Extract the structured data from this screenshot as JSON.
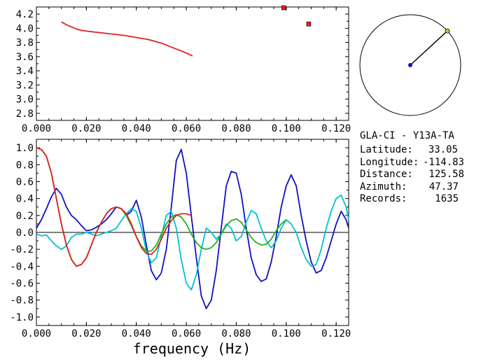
{
  "chart_data": [
    {
      "type": "scatter",
      "xlim": [
        0,
        0.125
      ],
      "ylim": [
        2.7,
        4.3
      ],
      "x_ticks": [
        "0.000",
        "0.020",
        "0.040",
        "0.060",
        "0.080",
        "0.100",
        "0.120"
      ],
      "y_ticks": [
        "2.8",
        "3.0",
        "3.2",
        "3.4",
        "3.6",
        "3.8",
        "4.0",
        "4.2"
      ],
      "grid": false,
      "series": [
        {
          "color": "#e02020",
          "kind": "line",
          "x": [
            0.01,
            0.012,
            0.014,
            0.016,
            0.018,
            0.02,
            0.025,
            0.03,
            0.035,
            0.04,
            0.045,
            0.05,
            0.055,
            0.058,
            0.06,
            0.0625
          ],
          "y": [
            4.09,
            4.05,
            4.02,
            3.99,
            3.97,
            3.96,
            3.94,
            3.92,
            3.9,
            3.87,
            3.84,
            3.79,
            3.72,
            3.68,
            3.65,
            3.61
          ]
        },
        {
          "color": "#e02020",
          "kind": "points",
          "x": [
            0.099,
            0.109
          ],
          "y": [
            4.29,
            4.06
          ]
        }
      ]
    },
    {
      "type": "line",
      "xlim": [
        0,
        0.125
      ],
      "ylim": [
        -1.1,
        1.1
      ],
      "xlabel": "frequency (Hz)",
      "x_ticks": [
        "0.000",
        "0.020",
        "0.040",
        "0.060",
        "0.080",
        "0.100",
        "0.120"
      ],
      "y_ticks": [
        "1.0",
        "0.8",
        "0.6",
        "0.4",
        "0.2",
        "0.0",
        "-0.2",
        "-0.4",
        "-0.6",
        "-0.8",
        "-1.0"
      ],
      "grid": false,
      "zero_line": true,
      "series": [
        {
          "color": "#1010c0",
          "x": [
            0,
            0.002,
            0.004,
            0.006,
            0.008,
            0.01,
            0.012,
            0.014,
            0.016,
            0.018,
            0.02,
            0.022,
            0.024,
            0.026,
            0.028,
            0.03,
            0.032,
            0.034,
            0.036,
            0.038,
            0.04,
            0.042,
            0.044,
            0.046,
            0.048,
            0.05,
            0.052,
            0.054,
            0.056,
            0.058,
            0.06,
            0.062,
            0.064,
            0.066,
            0.068,
            0.07,
            0.072,
            0.074,
            0.076,
            0.078,
            0.08,
            0.082,
            0.084,
            0.086,
            0.088,
            0.09,
            0.092,
            0.094,
            0.096,
            0.098,
            0.1,
            0.102,
            0.104,
            0.106,
            0.108,
            0.11,
            0.112,
            0.114,
            0.116,
            0.118,
            0.12,
            0.122,
            0.124,
            0.125
          ],
          "y": [
            0.05,
            0.15,
            0.28,
            0.42,
            0.52,
            0.45,
            0.3,
            0.2,
            0.15,
            0.08,
            0.02,
            0.03,
            0.06,
            0.1,
            0.15,
            0.22,
            0.3,
            0.28,
            0.2,
            0.25,
            0.38,
            0.18,
            -0.15,
            -0.45,
            -0.56,
            -0.48,
            -0.2,
            0.3,
            0.85,
            0.98,
            0.7,
            0.2,
            -0.3,
            -0.75,
            -0.9,
            -0.8,
            -0.45,
            0.05,
            0.55,
            0.72,
            0.7,
            0.45,
            0.05,
            -0.3,
            -0.5,
            -0.58,
            -0.55,
            -0.35,
            -0.05,
            0.3,
            0.55,
            0.68,
            0.55,
            0.2,
            -0.1,
            -0.35,
            -0.48,
            -0.45,
            -0.3,
            -0.1,
            0.1,
            0.25,
            0.15,
            0.05
          ]
        },
        {
          "color": "#00c0d0",
          "x": [
            0,
            0.002,
            0.004,
            0.006,
            0.008,
            0.01,
            0.012,
            0.014,
            0.016,
            0.018,
            0.02,
            0.022,
            0.024,
            0.026,
            0.028,
            0.03,
            0.032,
            0.034,
            0.036,
            0.038,
            0.04,
            0.042,
            0.044,
            0.046,
            0.048,
            0.05,
            0.052,
            0.054,
            0.056,
            0.058,
            0.06,
            0.062,
            0.064,
            0.066,
            0.068,
            0.07,
            0.072,
            0.074,
            0.076,
            0.078,
            0.08,
            0.082,
            0.084,
            0.086,
            0.088,
            0.09,
            0.092,
            0.094,
            0.096,
            0.098,
            0.1,
            0.102,
            0.104,
            0.106,
            0.108,
            0.11,
            0.112,
            0.114,
            0.116,
            0.118,
            0.12,
            0.122,
            0.124,
            0.125
          ],
          "y": [
            -0.02,
            -0.04,
            -0.03,
            -0.1,
            -0.16,
            -0.2,
            -0.16,
            -0.06,
            -0.02,
            -0.02,
            0.0,
            -0.02,
            -0.04,
            -0.02,
            0.0,
            0.02,
            0.05,
            0.14,
            0.22,
            0.28,
            0.25,
            0.05,
            -0.22,
            -0.36,
            -0.3,
            -0.05,
            0.2,
            0.25,
            0.05,
            -0.32,
            -0.6,
            -0.68,
            -0.5,
            -0.2,
            0.05,
            0.0,
            -0.08,
            -0.02,
            0.1,
            0.05,
            -0.1,
            -0.05,
            0.12,
            0.26,
            0.22,
            0.05,
            -0.1,
            -0.18,
            -0.1,
            0.05,
            0.15,
            0.1,
            0.0,
            -0.18,
            -0.32,
            -0.4,
            -0.38,
            -0.2,
            0.05,
            0.25,
            0.4,
            0.44,
            0.3,
            0.15
          ]
        },
        {
          "color": "#20b020",
          "x": [
            0,
            0.002,
            0.004,
            0.006,
            0.008,
            0.01,
            0.012,
            0.014,
            0.016,
            0.018,
            0.02,
            0.022,
            0.024,
            0.026,
            0.028,
            0.03,
            0.032,
            0.034,
            0.036,
            0.038,
            0.04,
            0.042,
            0.044,
            0.046,
            0.048,
            0.05,
            0.052,
            0.054,
            0.056,
            0.058,
            0.06,
            0.062,
            0.064,
            0.066,
            0.068,
            0.07,
            0.072,
            0.074,
            0.076,
            0.078,
            0.08,
            0.082,
            0.084,
            0.086,
            0.088,
            0.09,
            0.092,
            0.094,
            0.096,
            0.098,
            0.1
          ],
          "y": [
            1.0,
            0.98,
            0.9,
            0.7,
            0.4,
            0.1,
            -0.15,
            -0.32,
            -0.4,
            -0.38,
            -0.3,
            -0.15,
            0.0,
            0.12,
            0.22,
            0.28,
            0.3,
            0.28,
            0.2,
            0.08,
            -0.05,
            -0.16,
            -0.22,
            -0.22,
            -0.15,
            -0.02,
            0.1,
            0.18,
            0.21,
            0.18,
            0.1,
            -0.02,
            -0.12,
            -0.18,
            -0.2,
            -0.18,
            -0.12,
            -0.02,
            0.08,
            0.14,
            0.16,
            0.12,
            0.03,
            -0.06,
            -0.12,
            -0.15,
            -0.14,
            -0.08,
            0.02,
            0.1,
            0.15
          ]
        },
        {
          "color": "#e02020",
          "x": [
            0,
            0.002,
            0.004,
            0.006,
            0.008,
            0.01,
            0.012,
            0.014,
            0.016,
            0.018,
            0.02,
            0.022,
            0.024,
            0.026,
            0.028,
            0.03,
            0.032,
            0.034,
            0.036,
            0.038,
            0.04,
            0.042,
            0.044,
            0.046,
            0.048,
            0.05,
            0.052,
            0.054,
            0.056,
            0.058,
            0.06,
            0.062
          ],
          "y": [
            1.0,
            0.98,
            0.9,
            0.7,
            0.4,
            0.1,
            -0.15,
            -0.32,
            -0.4,
            -0.38,
            -0.3,
            -0.15,
            0.0,
            0.12,
            0.22,
            0.28,
            0.3,
            0.28,
            0.22,
            0.1,
            -0.05,
            -0.18,
            -0.25,
            -0.26,
            -0.2,
            -0.08,
            0.05,
            0.14,
            0.2,
            0.22,
            0.22,
            0.2
          ]
        }
      ]
    }
  ],
  "azimuth_dial": {
    "circle_color": "#000000",
    "center_color": "#1010c0",
    "tip_color": "#e0c020",
    "azimuth_deg": 47.37
  },
  "info": {
    "station_line": "GLA-CI - Y13A-TA",
    "latitude_label": "Latitude:",
    "latitude_value": "33.05",
    "longitude_label": "Longitude:",
    "longitude_value": "-114.83",
    "distance_label": "Distance:",
    "distance_value": "125.58",
    "azimuth_label": "Azimuth:",
    "azimuth_value": "47.37",
    "records_label": "Records:",
    "records_value": "1635"
  }
}
